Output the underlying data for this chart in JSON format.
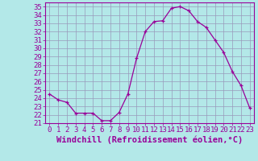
{
  "x": [
    0,
    1,
    2,
    3,
    4,
    5,
    6,
    7,
    8,
    9,
    10,
    11,
    12,
    13,
    14,
    15,
    16,
    17,
    18,
    19,
    20,
    21,
    22,
    23
  ],
  "y": [
    24.5,
    23.8,
    23.5,
    22.2,
    22.2,
    22.2,
    21.3,
    21.3,
    22.3,
    24.5,
    28.8,
    32.0,
    33.2,
    33.3,
    34.8,
    35.0,
    34.5,
    33.2,
    32.5,
    31.0,
    29.5,
    27.2,
    25.5,
    22.8
  ],
  "line_color": "#990099",
  "marker": "+",
  "bg_color": "#b3e8e8",
  "grid_color": "#9999bb",
  "xlabel": "Windchill (Refroidissement éolien,°C)",
  "xlim": [
    -0.5,
    23.5
  ],
  "ylim": [
    21,
    35.5
  ],
  "yticks": [
    21,
    22,
    23,
    24,
    25,
    26,
    27,
    28,
    29,
    30,
    31,
    32,
    33,
    34,
    35
  ],
  "xticks": [
    0,
    1,
    2,
    3,
    4,
    5,
    6,
    7,
    8,
    9,
    10,
    11,
    12,
    13,
    14,
    15,
    16,
    17,
    18,
    19,
    20,
    21,
    22,
    23
  ],
  "tick_color": "#990099",
  "label_color": "#990099",
  "spine_color": "#990099",
  "font_size": 6.5,
  "xlabel_fontsize": 7.5
}
